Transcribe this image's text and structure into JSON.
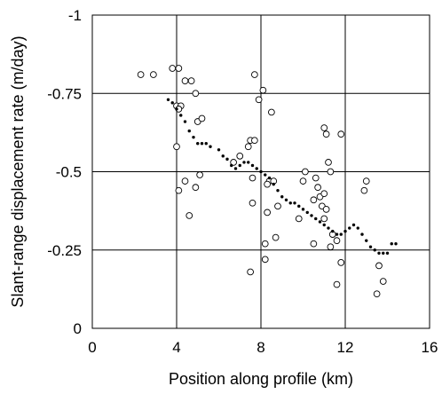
{
  "chart_data": {
    "type": "scatter",
    "title": "",
    "xlabel": "Position along profile (km)",
    "ylabel": "Slant-range displacement rate (m/day)",
    "xlim": [
      0,
      16
    ],
    "ylim": [
      0,
      -1
    ],
    "y_axis_inverted": true,
    "x_ticks": [
      0,
      4,
      8,
      12,
      16
    ],
    "x_tick_labels": [
      "0",
      "4",
      "8",
      "12",
      "16"
    ],
    "y_ticks": [
      -1,
      -0.75,
      -0.5,
      -0.25,
      0
    ],
    "y_tick_labels": [
      "-1",
      "-0.75",
      "-0.5",
      "-0.25",
      "0"
    ],
    "grid": true,
    "legend": "none",
    "series": [
      {
        "marker": "open-circle",
        "points": [
          [
            2.3,
            -0.81
          ],
          [
            2.9,
            -0.81
          ],
          [
            3.8,
            -0.83
          ],
          [
            4.1,
            -0.83
          ],
          [
            4.4,
            -0.79
          ],
          [
            4.7,
            -0.79
          ],
          [
            4.0,
            -0.71
          ],
          [
            4.2,
            -0.71
          ],
          [
            4.1,
            -0.7
          ],
          [
            4.9,
            -0.75
          ],
          [
            5.0,
            -0.66
          ],
          [
            5.2,
            -0.67
          ],
          [
            4.0,
            -0.58
          ],
          [
            4.4,
            -0.47
          ],
          [
            4.1,
            -0.44
          ],
          [
            4.6,
            -0.36
          ],
          [
            5.1,
            -0.49
          ],
          [
            4.9,
            -0.45
          ],
          [
            7.7,
            -0.81
          ],
          [
            8.1,
            -0.76
          ],
          [
            7.9,
            -0.73
          ],
          [
            8.5,
            -0.69
          ],
          [
            7.5,
            -0.6
          ],
          [
            7.4,
            -0.58
          ],
          [
            7.7,
            -0.6
          ],
          [
            7.0,
            -0.55
          ],
          [
            6.7,
            -0.53
          ],
          [
            7.6,
            -0.48
          ],
          [
            8.4,
            -0.47
          ],
          [
            8.6,
            -0.47
          ],
          [
            8.3,
            -0.46
          ],
          [
            7.6,
            -0.4
          ],
          [
            8.8,
            -0.39
          ],
          [
            8.3,
            -0.37
          ],
          [
            8.7,
            -0.29
          ],
          [
            8.2,
            -0.27
          ],
          [
            8.2,
            -0.22
          ],
          [
            7.5,
            -0.18
          ],
          [
            9.8,
            -0.35
          ],
          [
            10.1,
            -0.5
          ],
          [
            10.6,
            -0.48
          ],
          [
            10.8,
            -0.42
          ],
          [
            10.5,
            -0.41
          ],
          [
            10.9,
            -0.39
          ],
          [
            11.1,
            -0.38
          ],
          [
            11.0,
            -0.43
          ],
          [
            10.7,
            -0.45
          ],
          [
            11.2,
            -0.53
          ],
          [
            11.3,
            -0.5
          ],
          [
            11.0,
            -0.64
          ],
          [
            11.1,
            -0.62
          ],
          [
            11.8,
            -0.62
          ],
          [
            10.0,
            -0.47
          ],
          [
            10.5,
            -0.27
          ],
          [
            11.4,
            -0.3
          ],
          [
            11.6,
            -0.28
          ],
          [
            11.3,
            -0.26
          ],
          [
            11.8,
            -0.21
          ],
          [
            11.6,
            -0.14
          ],
          [
            12.9,
            -0.44
          ],
          [
            13.0,
            -0.47
          ],
          [
            13.6,
            -0.2
          ],
          [
            13.8,
            -0.15
          ],
          [
            13.5,
            -0.11
          ],
          [
            11.0,
            -0.35
          ]
        ]
      },
      {
        "marker": "filled-dot",
        "points": [
          [
            3.6,
            -0.73
          ],
          [
            3.8,
            -0.72
          ],
          [
            4.0,
            -0.7
          ],
          [
            4.2,
            -0.68
          ],
          [
            4.4,
            -0.66
          ],
          [
            4.6,
            -0.63
          ],
          [
            4.8,
            -0.61
          ],
          [
            5.0,
            -0.59
          ],
          [
            5.2,
            -0.59
          ],
          [
            5.4,
            -0.59
          ],
          [
            5.6,
            -0.58
          ],
          [
            6.0,
            -0.57
          ],
          [
            6.2,
            -0.55
          ],
          [
            6.4,
            -0.54
          ],
          [
            6.6,
            -0.52
          ],
          [
            6.8,
            -0.51
          ],
          [
            7.0,
            -0.52
          ],
          [
            7.2,
            -0.53
          ],
          [
            7.4,
            -0.53
          ],
          [
            7.6,
            -0.52
          ],
          [
            7.8,
            -0.51
          ],
          [
            8.0,
            -0.5
          ],
          [
            8.2,
            -0.49
          ],
          [
            8.4,
            -0.48
          ],
          [
            8.6,
            -0.46
          ],
          [
            8.8,
            -0.44
          ],
          [
            9.0,
            -0.42
          ],
          [
            9.2,
            -0.41
          ],
          [
            9.4,
            -0.4
          ],
          [
            9.6,
            -0.4
          ],
          [
            9.8,
            -0.39
          ],
          [
            10.0,
            -0.38
          ],
          [
            10.2,
            -0.37
          ],
          [
            10.4,
            -0.36
          ],
          [
            10.6,
            -0.35
          ],
          [
            10.8,
            -0.34
          ],
          [
            11.0,
            -0.33
          ],
          [
            11.2,
            -0.32
          ],
          [
            11.4,
            -0.31
          ],
          [
            11.6,
            -0.3
          ],
          [
            11.8,
            -0.3
          ],
          [
            12.0,
            -0.31
          ],
          [
            12.2,
            -0.32
          ],
          [
            12.4,
            -0.33
          ],
          [
            12.6,
            -0.32
          ],
          [
            12.8,
            -0.3
          ],
          [
            13.0,
            -0.28
          ],
          [
            13.2,
            -0.26
          ],
          [
            13.4,
            -0.25
          ],
          [
            13.6,
            -0.24
          ],
          [
            13.8,
            -0.24
          ],
          [
            14.0,
            -0.24
          ],
          [
            14.2,
            -0.27
          ],
          [
            14.4,
            -0.27
          ]
        ]
      }
    ]
  }
}
